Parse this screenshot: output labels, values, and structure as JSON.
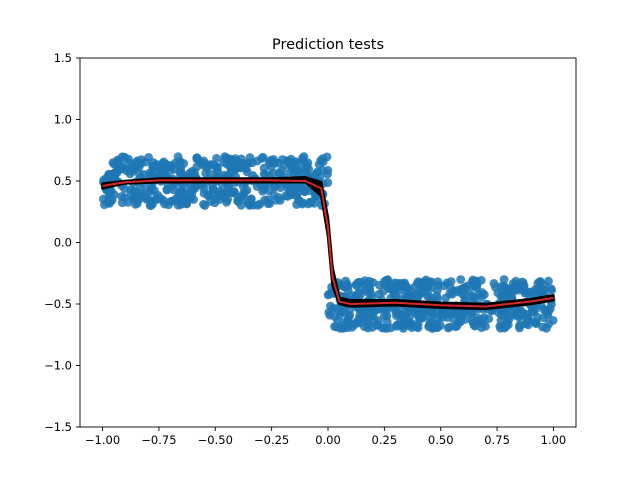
{
  "chart_data": {
    "type": "scatter",
    "title": "Prediction tests",
    "xlabel": "",
    "ylabel": "",
    "xlim": [
      -1.1,
      1.1
    ],
    "ylim": [
      -1.5,
      1.5
    ],
    "xticks": [
      -1.0,
      -0.75,
      -0.5,
      -0.25,
      0.0,
      0.25,
      0.5,
      0.75,
      1.0
    ],
    "xtick_labels": [
      "−1.00",
      "−0.75",
      "−0.50",
      "−0.25",
      "0.00",
      "0.25",
      "0.50",
      "0.75",
      "1.00"
    ],
    "yticks": [
      -1.5,
      -1.0,
      -0.5,
      0.0,
      0.5,
      1.0,
      1.5
    ],
    "ytick_labels": [
      "−1.5",
      "−1.0",
      "−0.5",
      "0.0",
      "0.5",
      "1.0",
      "1.5"
    ],
    "grid": false,
    "scatter_series": {
      "color": "#1f77b4",
      "description_ranges": {
        "left_cluster": {
          "x": [
            -1.0,
            0.0
          ],
          "y": [
            0.3,
            0.7
          ]
        },
        "right_cluster": {
          "x": [
            0.0,
            1.0
          ],
          "y": [
            -0.7,
            -0.3
          ]
        }
      },
      "count": 1000
    },
    "prediction_band": {
      "color": "#000000",
      "x": [
        -1.0,
        -0.9,
        -0.75,
        -0.5,
        -0.25,
        -0.1,
        -0.03,
        0.0,
        0.02,
        0.05,
        0.1,
        0.3,
        0.5,
        0.7,
        0.9,
        1.0
      ],
      "y_upper": [
        0.48,
        0.5,
        0.52,
        0.52,
        0.52,
        0.53,
        0.49,
        0.2,
        -0.2,
        -0.45,
        -0.47,
        -0.47,
        -0.49,
        -0.5,
        -0.46,
        -0.43
      ],
      "y_lower": [
        0.44,
        0.48,
        0.49,
        0.49,
        0.49,
        0.49,
        0.38,
        0.05,
        -0.35,
        -0.5,
        -0.52,
        -0.51,
        -0.53,
        -0.54,
        -0.5,
        -0.47
      ]
    },
    "prediction_line": {
      "color": "#d62728",
      "x": [
        -1.0,
        -0.9,
        -0.75,
        -0.5,
        -0.25,
        -0.1,
        -0.03,
        0.0,
        0.02,
        0.05,
        0.1,
        0.3,
        0.5,
        0.7,
        0.9,
        1.0
      ],
      "y": [
        0.46,
        0.49,
        0.505,
        0.505,
        0.505,
        0.5,
        0.44,
        0.12,
        -0.28,
        -0.48,
        -0.5,
        -0.49,
        -0.51,
        -0.52,
        -0.48,
        -0.45
      ]
    }
  }
}
